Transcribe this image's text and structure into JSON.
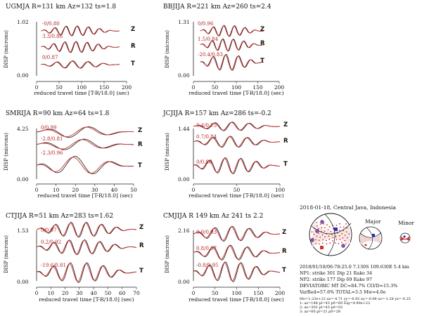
{
  "chart_data": [
    {
      "type": "line",
      "title": "UGMJA R=131 km Az=132 ts=1.8",
      "ylabel": "DISP (microns)",
      "xlabel": "reduced travel time [T-R/18.0] (sec)",
      "xlim": [
        0,
        200
      ],
      "xticks": [
        0,
        50,
        100,
        150,
        200
      ],
      "ylim_max": "1.02",
      "ylim_min": "0.00",
      "components": [
        {
          "name": "Z",
          "label": "-0/0.80"
        },
        {
          "name": "R",
          "label": "3.3/0.86"
        },
        {
          "name": "T",
          "label": "0/0.87"
        }
      ]
    },
    {
      "type": "line",
      "title": "BBJIJA R=221 km Az=260 ts=2.4",
      "ylabel": "DISP (microns)",
      "xlabel": "reduced travel time [T-R/18.0] (sec)",
      "xlim": [
        0,
        200
      ],
      "xticks": [
        0,
        50,
        100,
        150,
        200
      ],
      "ylim_max": "1.31",
      "ylim_min": "0.00",
      "components": [
        {
          "name": "Z",
          "label": "0/0.96"
        },
        {
          "name": "R",
          "label": "1.5/0.84"
        },
        {
          "name": "T",
          "label": "-20.4/0.83"
        }
      ]
    },
    {
      "type": "line",
      "title": "SMRIJA R=90 km Az=64 ts=1.8",
      "ylabel": "DISP (microns)",
      "xlabel": "reduced travel time [T-R/18.0] (sec)",
      "xlim": [
        0,
        50
      ],
      "xticks": [
        0,
        10,
        20,
        30,
        40,
        50
      ],
      "ylim_max": "4.25",
      "ylim_min": "0.00",
      "components": [
        {
          "name": "Z",
          "label": "0/0.99"
        },
        {
          "name": "R",
          "label": "-2.8/0.81"
        },
        {
          "name": "T",
          "label": "-2.3/0.96"
        }
      ]
    },
    {
      "type": "line",
      "title": "JCJIJA R=157 km Az=286 ts=-0.2",
      "ylabel": "DISP (microns)",
      "xlabel": "reduced travel time [T-R/18.0] (sec)",
      "xlim": [
        0,
        100
      ],
      "xticks": [
        0,
        50,
        100
      ],
      "ylim_max": "1.44",
      "ylim_min": "0.00",
      "components": [
        {
          "name": "Z",
          "label": "0.4/0.75"
        },
        {
          "name": "R",
          "label": "0.7/0.84"
        },
        {
          "name": "T",
          "label": "0/0.86"
        }
      ]
    },
    {
      "type": "line",
      "title": "CTJIJA R=51 km Az=283 ts=1.62",
      "ylabel": "DISP (microns)",
      "xlabel": "reduced travel time [T-R/18.0] (sec)",
      "xlim": [
        0,
        70
      ],
      "xticks": [
        0,
        10,
        20,
        30,
        40,
        50,
        60,
        70
      ],
      "ylim_max": "1.53",
      "ylim_min": "0.00",
      "components": [
        {
          "name": "Z",
          "label": "0/0.97"
        },
        {
          "name": "R",
          "label": "0.2/0.92"
        },
        {
          "name": "T",
          "label": "-19.6/0.81"
        }
      ]
    },
    {
      "type": "line",
      "title": "CMJIJA R 149 km Az 241 ts 2.2",
      "ylabel": "DISP (microns)",
      "xlabel": "reduced travel time [T-R/18.0] (sec)",
      "xlim": [
        0,
        200
      ],
      "xticks": [
        0,
        50,
        100,
        150,
        200
      ],
      "ylim_max": "2.16",
      "ylim_min": "0.00",
      "components": [
        {
          "name": "Z",
          "label": "0.9/0.93"
        },
        {
          "name": "R",
          "label": "0.8/0.97"
        },
        {
          "name": "T",
          "label": "-0.8/0.95"
        }
      ]
    }
  ],
  "focal": {
    "title": "2018-01-18, Central Java, Indonesia",
    "major_label": "Major",
    "minor_label": "Minor",
    "lines": [
      "2018/01/18/06:78:25.0   7.130S 109.630E 5.4 km",
      "NP1: strike 301 Dip 21 Rake 34",
      "NP2: strike 177 Dip 69 Rake 97",
      "DEVIATORIC MT DC=84.7% CLVD=15.3%",
      "VarRed=57.6% TOTAL=3.5 Mw=4.0e"
    ],
    "small_lines": [
      "Mo=1.23e+22 xx=-4.71 yy=-6.92 xy=-0.06 xz=-1.26 yz=-0.25",
      "1: az=148 pl=43 p0=60 Eig=4.90e+22",
      "2: az=302 pl=43 p0=02",
      "3: az=60 pl=21 p0=28"
    ]
  }
}
